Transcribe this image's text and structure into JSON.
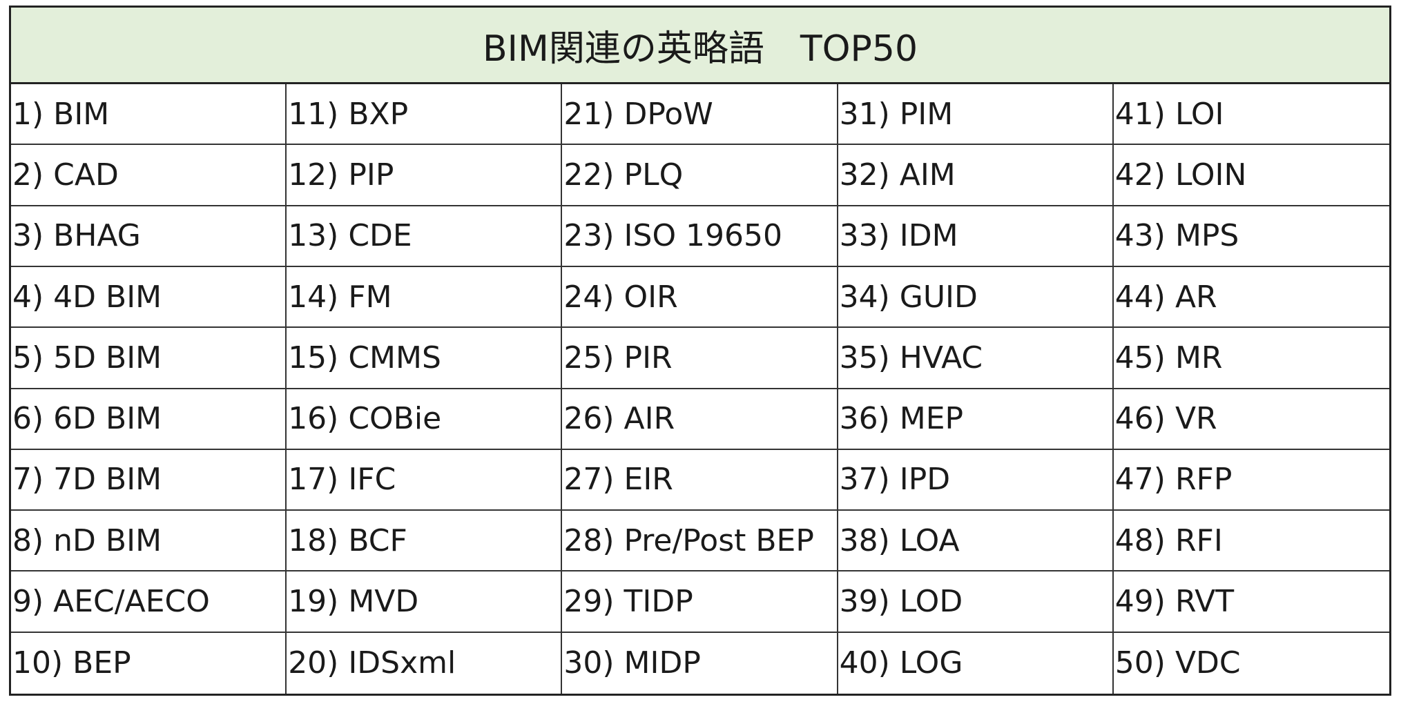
{
  "title": "BIM関連の英略語　TOP50",
  "columns": [
    [
      "1) BIM",
      "2) CAD",
      "3) BHAG",
      "4) 4D BIM",
      "5) 5D BIM",
      "6) 6D BIM",
      "7) 7D BIM",
      "8) nD BIM",
      "9) AEC/AECO",
      "10) BEP"
    ],
    [
      "11) BXP",
      "12) PIP",
      "13) CDE",
      "14) FM",
      "15) CMMS",
      "16) COBie",
      "17) IFC",
      "18) BCF",
      "19) MVD",
      "20) IDSxml"
    ],
    [
      "21) DPoW",
      "22) PLQ",
      "23) ISO 19650",
      "24) OIR",
      "25) PIR",
      "26) AIR",
      "27) EIR",
      "28) Pre/Post BEP",
      "29) TIDP",
      "30) MIDP"
    ],
    [
      "31) PIM",
      "32) AIM",
      "33) IDM",
      "34) GUID",
      "35) HVAC",
      "36) MEP",
      "37) IPD",
      "38) LOA",
      "39) LOD",
      "40) LOG"
    ],
    [
      "41) LOI",
      "42) LOIN",
      "43) MPS",
      "44) AR",
      "45) MR",
      "46) VR",
      "47) RFP",
      "48) RFI",
      "49) RVT",
      "50) VDC"
    ]
  ],
  "colors": {
    "header_background": "#e3efda",
    "border": "#222222"
  }
}
